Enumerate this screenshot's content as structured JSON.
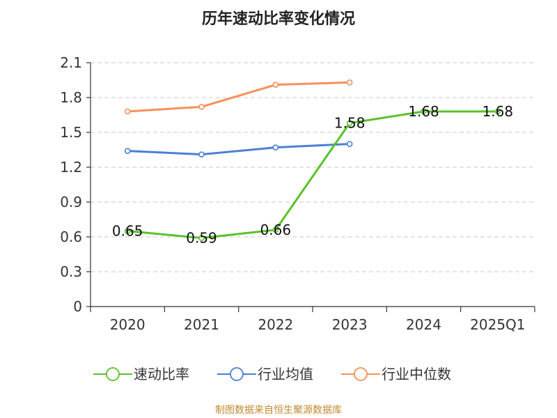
{
  "chart_data": {
    "type": "line",
    "title": "历年速动比率变化情况",
    "categories": [
      "2020",
      "2021",
      "2022",
      "2023",
      "2024",
      "2025Q1"
    ],
    "ylim": [
      0,
      2.1
    ],
    "yticks": [
      "0",
      "0.3",
      "0.6",
      "0.9",
      "1.2",
      "1.5",
      "1.8",
      "2.1"
    ],
    "grid": true,
    "legend_position": "bottom",
    "series": [
      {
        "name": "速动比率",
        "color": "#5ac12a",
        "values": [
          0.65,
          0.59,
          0.66,
          1.58,
          1.68,
          1.68
        ],
        "labels": [
          "0.65",
          "0.59",
          "0.66",
          "1.58",
          "1.68",
          "1.68"
        ]
      },
      {
        "name": "行业均值",
        "color": "#4a7fd8",
        "values": [
          1.34,
          1.31,
          1.37,
          1.4,
          null,
          null
        ]
      },
      {
        "name": "行业中位数",
        "color": "#f5905a",
        "values": [
          1.68,
          1.72,
          1.91,
          1.93,
          null,
          null
        ]
      }
    ]
  },
  "source_text": "制图数据来自恒生聚源数据库"
}
